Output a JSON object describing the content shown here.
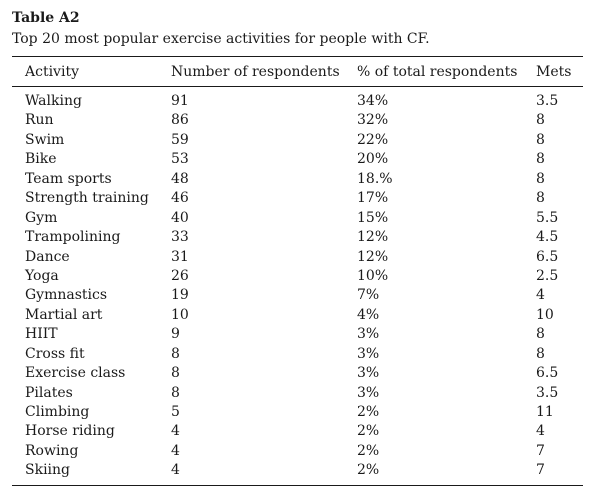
{
  "table": {
    "title": "Table A2",
    "caption": "Top 20 most popular exercise activities for people with CF.",
    "headers": [
      "Activity",
      "Number of respondents",
      "% of total respondents",
      "Mets"
    ],
    "rows": [
      [
        "Walking",
        "91",
        "34%",
        "3.5"
      ],
      [
        "Run",
        "86",
        "32%",
        "8"
      ],
      [
        "Swim",
        "59",
        "22%",
        "8"
      ],
      [
        "Bike",
        "53",
        "20%",
        "8"
      ],
      [
        "Team sports",
        "48",
        "18.%",
        "8"
      ],
      [
        "Strength training",
        "46",
        "17%",
        "8"
      ],
      [
        "Gym",
        "40",
        "15%",
        "5.5"
      ],
      [
        "Trampolining",
        "33",
        "12%",
        "4.5"
      ],
      [
        "Dance",
        "31",
        "12%",
        "6.5"
      ],
      [
        "Yoga",
        "26",
        "10%",
        "2.5"
      ],
      [
        "Gymnastics",
        "19",
        "7%",
        "4"
      ],
      [
        "Martial art",
        "10",
        "4%",
        "10"
      ],
      [
        "HIIT",
        "9",
        "3%",
        "8"
      ],
      [
        "Cross fit",
        "8",
        "3%",
        "8"
      ],
      [
        "Exercise class",
        "8",
        "3%",
        "6.5"
      ],
      [
        "Pilates",
        "8",
        "3%",
        "3.5"
      ],
      [
        "Climbing",
        "5",
        "2%",
        "11"
      ],
      [
        "Horse riding",
        "4",
        "2%",
        "4"
      ],
      [
        "Rowing",
        "4",
        "2%",
        "7"
      ],
      [
        "Skiing",
        "4",
        "2%",
        "7"
      ]
    ]
  }
}
